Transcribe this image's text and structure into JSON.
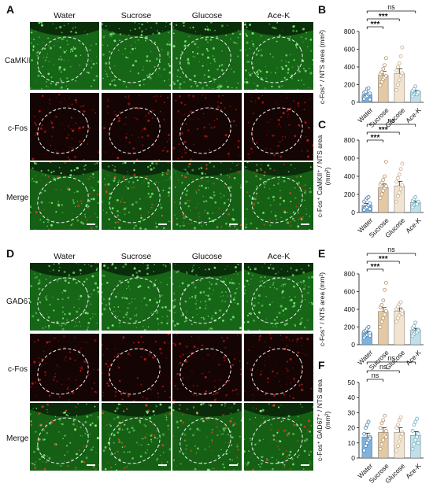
{
  "panels": {
    "A": "A",
    "B": "B",
    "C": "C",
    "D": "D",
    "E": "E",
    "F": "F"
  },
  "micrographs": [
    {
      "id": "top",
      "columns": [
        "Water",
        "Sucrose",
        "Glucose",
        "Ace-K"
      ],
      "rows": [
        "CaMKII",
        "c-Fos",
        "Merge"
      ]
    },
    {
      "id": "bottom",
      "columns": [
        "Water",
        "Sucrose",
        "Glucose",
        "Ace-K"
      ],
      "rows": [
        "GAD67",
        "c-Fos",
        "Merge"
      ]
    }
  ],
  "colors": {
    "green_channel": "#1f8a1f",
    "red_channel": "#c21a14",
    "water": "#7fb3dc",
    "sucrose": "#e3c9a4",
    "glucose": "#f2e4d0",
    "acek": "#bfe0ea"
  },
  "chart_data": [
    {
      "panel": "B",
      "type": "bar",
      "categories": [
        "Water",
        "Sucrose",
        "Glucose",
        "Ace-K"
      ],
      "values": [
        85,
        305,
        325,
        120
      ],
      "errors": [
        20,
        45,
        55,
        15
      ],
      "points": [
        [
          40,
          60,
          70,
          90,
          100,
          110,
          120,
          150,
          160,
          30
        ],
        [
          190,
          230,
          260,
          280,
          300,
          320,
          340,
          380,
          420,
          500
        ],
        [
          140,
          200,
          250,
          300,
          330,
          360,
          400,
          440,
          520,
          620
        ],
        [
          70,
          90,
          100,
          110,
          120,
          130,
          150,
          180,
          90,
          110
        ]
      ],
      "ylabel_html": "c-Fos⁺ / NTS area (mm²)",
      "ylim": [
        0,
        800
      ],
      "yticks": [
        0,
        200,
        400,
        600,
        800
      ],
      "significance": [
        {
          "from": 0,
          "to": 1,
          "label": "***"
        },
        {
          "from": 0,
          "to": 2,
          "label": "***"
        },
        {
          "from": 0,
          "to": 3,
          "label": "ns"
        }
      ]
    },
    {
      "panel": "C",
      "type": "bar",
      "categories": [
        "Water",
        "Sucrose",
        "Glucose",
        "Ace-K"
      ],
      "values": [
        80,
        275,
        295,
        110
      ],
      "errors": [
        20,
        40,
        50,
        15
      ],
      "points": [
        [
          30,
          50,
          60,
          80,
          100,
          120,
          140,
          160,
          170,
          40
        ],
        [
          160,
          200,
          240,
          270,
          290,
          310,
          330,
          360,
          400,
          560
        ],
        [
          120,
          180,
          220,
          260,
          300,
          340,
          380,
          420,
          480,
          540
        ],
        [
          60,
          80,
          90,
          100,
          110,
          130,
          150,
          170,
          90,
          120
        ]
      ],
      "ylabel_line1": "c-Fos⁺ CaMKII⁺ / NTS area",
      "ylabel_line2": "(mm²)",
      "ylim": [
        0,
        800
      ],
      "yticks": [
        0,
        200,
        400,
        600,
        800
      ],
      "significance": [
        {
          "from": 0,
          "to": 1,
          "label": "***"
        },
        {
          "from": 0,
          "to": 2,
          "label": "***"
        },
        {
          "from": 0,
          "to": 3,
          "label": "ns"
        }
      ]
    },
    {
      "panel": "E",
      "type": "bar",
      "categories": [
        "Water",
        "Sucrose",
        "Glucose",
        "Ace-K"
      ],
      "values": [
        135,
        375,
        380,
        165
      ],
      "errors": [
        15,
        45,
        35,
        20
      ],
      "points": [
        [
          80,
          100,
          110,
          120,
          130,
          150,
          160,
          180,
          200,
          100
        ],
        [
          200,
          260,
          300,
          340,
          380,
          420,
          450,
          500,
          620,
          700
        ],
        [
          260,
          300,
          330,
          360,
          380,
          400,
          430,
          460,
          480,
          350
        ],
        [
          100,
          120,
          140,
          150,
          170,
          190,
          210,
          250,
          140,
          160
        ]
      ],
      "ylabel_html": "c-Fos⁺ / NTS area (mm²)",
      "ylim": [
        0,
        800
      ],
      "yticks": [
        0,
        200,
        400,
        600,
        800
      ],
      "significance": [
        {
          "from": 0,
          "to": 1,
          "label": "***"
        },
        {
          "from": 0,
          "to": 2,
          "label": "***"
        },
        {
          "from": 0,
          "to": 3,
          "label": "ns"
        }
      ]
    },
    {
      "panel": "F",
      "type": "bar",
      "categories": [
        "Water",
        "Sucrose",
        "Glucose",
        "Ace-K"
      ],
      "values": [
        14,
        17,
        17,
        15
      ],
      "errors": [
        2.5,
        3,
        3,
        2.5
      ],
      "points": [
        [
          5,
          8,
          10,
          12,
          14,
          16,
          20,
          22,
          24,
          13
        ],
        [
          6,
          9,
          12,
          15,
          18,
          20,
          23,
          25,
          28,
          14
        ],
        [
          5,
          8,
          11,
          14,
          17,
          20,
          22,
          25,
          27,
          16
        ],
        [
          6,
          9,
          12,
          14,
          16,
          18,
          22,
          24,
          26,
          10
        ]
      ],
      "ylabel_line1": "c-Fos⁺ GAD67⁺ / NTS area",
      "ylabel_line2": "(mm²)",
      "ylim": [
        0,
        50
      ],
      "yticks": [
        0,
        10,
        20,
        30,
        40,
        50
      ],
      "significance": [
        {
          "from": 0,
          "to": 1,
          "label": "ns"
        },
        {
          "from": 0,
          "to": 2,
          "label": "ns"
        },
        {
          "from": 0,
          "to": 3,
          "label": "ns"
        }
      ]
    }
  ]
}
